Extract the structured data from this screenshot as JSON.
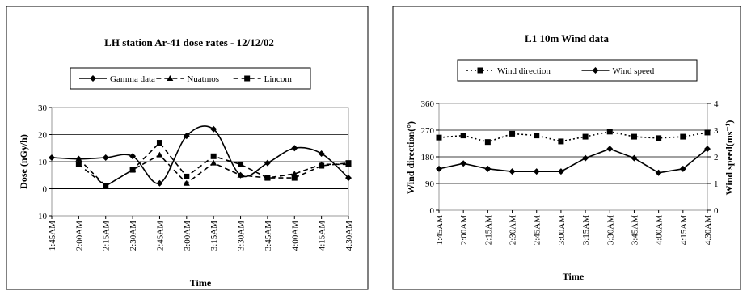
{
  "chart_data": [
    {
      "type": "line",
      "title": "LH station Ar-41 dose rates - 12/12/02",
      "xlabel": "Time",
      "ylabel": "Dose (nGy/h)",
      "ylim": [
        -10,
        30
      ],
      "yticks": [
        "-10",
        "0",
        "10",
        "20",
        "30"
      ],
      "grid": "horizontal",
      "legend": "top",
      "categories": [
        "1:45AM",
        "2:00AM",
        "2:15AM",
        "2:30AM",
        "2:45AM",
        "3:00AM",
        "3:15AM",
        "3:30AM",
        "3:45AM",
        "4:00AM",
        "4:15AM",
        "4:30AM"
      ],
      "series": [
        {
          "name": "Gamma data",
          "marker": "diamond",
          "dash": "solid",
          "smooth": true,
          "values": [
            11.5,
            11,
            11.5,
            12,
            2,
            19.5,
            22,
            5,
            9.5,
            15,
            13,
            4
          ]
        },
        {
          "name": "Nuatmos",
          "marker": "triangle",
          "dash": "dashed",
          "values": [
            null,
            11,
            1,
            7,
            12.5,
            2,
            9.5,
            5,
            4,
            5.5,
            9,
            9
          ]
        },
        {
          "name": "Lincom",
          "marker": "square",
          "dash": "dashed",
          "values": [
            null,
            9,
            1,
            7,
            17,
            4.5,
            12,
            9,
            4,
            4,
            8.5,
            9.5
          ]
        }
      ]
    },
    {
      "type": "line",
      "title": "L1 10m Wind data",
      "xlabel": "Time",
      "ylabel": "Wind direction(°)",
      "ylabel_right": "Wind speed(ms⁻¹)",
      "ylim": [
        0,
        360
      ],
      "ylim_right": [
        0,
        4
      ],
      "yticks": [
        "0",
        "90",
        "180",
        "270",
        "360"
      ],
      "yticks_right": [
        "0",
        "1",
        "2",
        "3",
        "4"
      ],
      "grid": "horizontal",
      "legend": "top",
      "categories": [
        "1:45AM",
        "2:00AM",
        "2:15AM",
        "2:30AM",
        "2:45AM",
        "3:00AM",
        "3:15AM",
        "3:30AM",
        "3:45AM",
        "4:00AM",
        "4:15AM",
        "4:30AM"
      ],
      "series": [
        {
          "name": "Wind direction",
          "marker": "square",
          "dash": "dotted",
          "axis": "left",
          "values": [
            245,
            252,
            230,
            258,
            252,
            232,
            248,
            265,
            248,
            243,
            248,
            262
          ]
        },
        {
          "name": "Wind speed",
          "marker": "diamond",
          "dash": "solid",
          "axis": "right",
          "values": [
            1.55,
            1.75,
            1.55,
            1.45,
            1.45,
            1.45,
            1.95,
            2.3,
            1.95,
            1.4,
            1.55,
            2.3
          ]
        }
      ]
    }
  ]
}
